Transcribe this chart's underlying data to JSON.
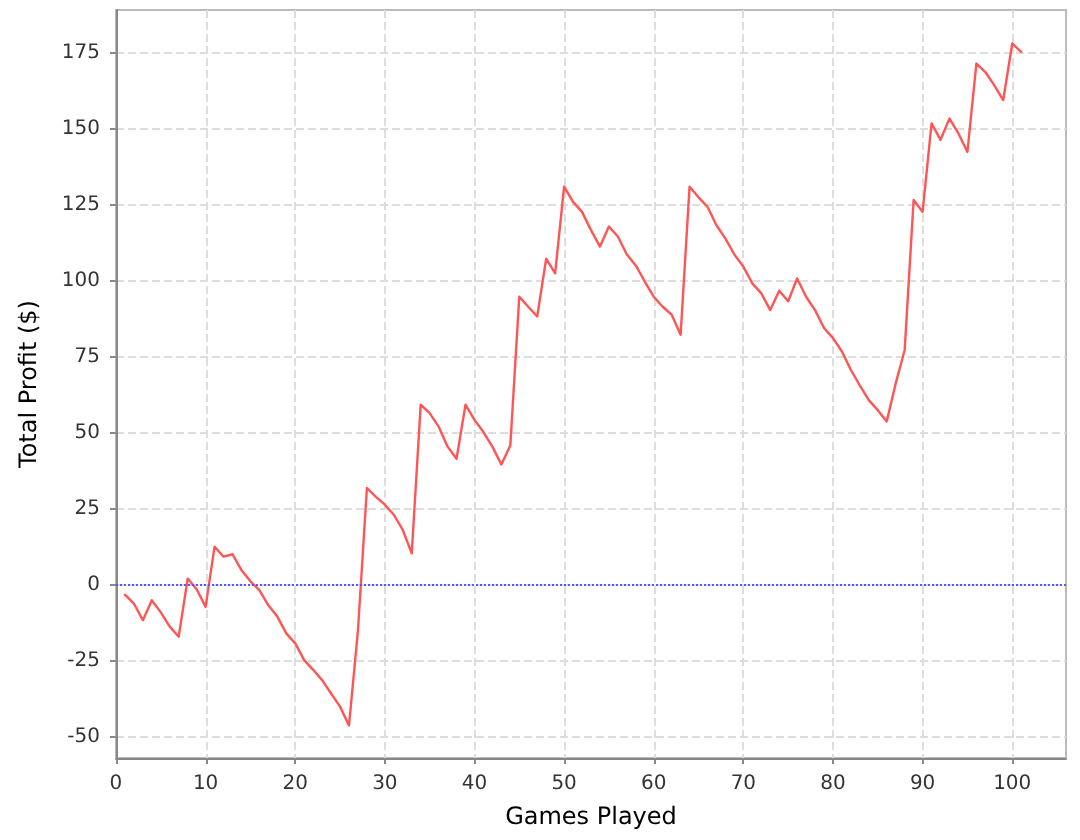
{
  "chart_data": {
    "type": "line",
    "xlabel": "Games Played",
    "ylabel": "Total Profit ($)",
    "x": [
      1,
      2,
      3,
      4,
      5,
      6,
      7,
      8,
      9,
      10,
      11,
      12,
      13,
      14,
      15,
      16,
      17,
      18,
      19,
      20,
      21,
      22,
      23,
      24,
      25,
      26,
      27,
      28,
      29,
      30,
      31,
      32,
      33,
      34,
      35,
      36,
      37,
      38,
      39,
      40,
      41,
      42,
      43,
      44,
      45,
      46,
      47,
      48,
      49,
      50,
      51,
      52,
      53,
      54,
      55,
      56,
      57,
      58,
      59,
      60,
      61,
      62,
      63,
      64,
      65,
      66,
      67,
      68,
      69,
      70,
      71,
      72,
      73,
      74,
      75,
      76,
      77,
      78,
      79,
      80,
      81,
      82,
      83,
      84,
      85,
      86,
      87,
      88,
      89,
      90,
      91,
      92,
      93,
      94,
      95,
      96,
      97,
      98,
      99,
      100,
      101
    ],
    "series": [
      {
        "color": "#ff5555",
        "values": [
          -3.3,
          -6.2,
          -11.7,
          -5.1,
          -9.1,
          -13.8,
          -17.1,
          2.0,
          -1.5,
          -7.3,
          12.5,
          9.2,
          10,
          4.8,
          1.1,
          -1.8,
          -6.8,
          -10.5,
          -16,
          -19.3,
          -24.8,
          -28,
          -31.4,
          -35.8,
          -40.1,
          -46.3,
          -15,
          31.8,
          28.9,
          26.3,
          23,
          18,
          10.3,
          59.2,
          56.4,
          52,
          45.4,
          41.4,
          59.2,
          54.2,
          50.2,
          45.4,
          39.5,
          45.8,
          94.7,
          91.4,
          88.2,
          107.2,
          102.4,
          130.9,
          125.9,
          122.6,
          116.6,
          111.2,
          117.8,
          114.5,
          108.6,
          105,
          99.7,
          94.7,
          91.4,
          88.8,
          82.2,
          130.9,
          127.4,
          124.3,
          118.2,
          113.8,
          108.6,
          104.6,
          99.1,
          95.8,
          90.3,
          96.7,
          93.2,
          100.7,
          94.7,
          90.3,
          84.4,
          81.1,
          76.7,
          70.6,
          65.5,
          60.7,
          57.4,
          53.7,
          66.2,
          77.2,
          126.5,
          122.6,
          151.7,
          146.3,
          153.3,
          148.4,
          142.3,
          171.4,
          168.6,
          164.2,
          159.4,
          178,
          175.2
        ]
      }
    ],
    "xlim": [
      0,
      106
    ],
    "ylim": [
      -57,
      189
    ],
    "xticks": [
      0,
      10,
      20,
      30,
      40,
      50,
      60,
      70,
      80,
      90,
      100
    ],
    "yticks": [
      -50,
      -25,
      0,
      25,
      50,
      75,
      100,
      125,
      150,
      175
    ],
    "grid": true,
    "marker": "none",
    "line_style": "solid",
    "ref_lines": [
      {
        "axis": "y",
        "value": 0,
        "color": "#5555ff",
        "line_style": "dotted"
      }
    ]
  }
}
